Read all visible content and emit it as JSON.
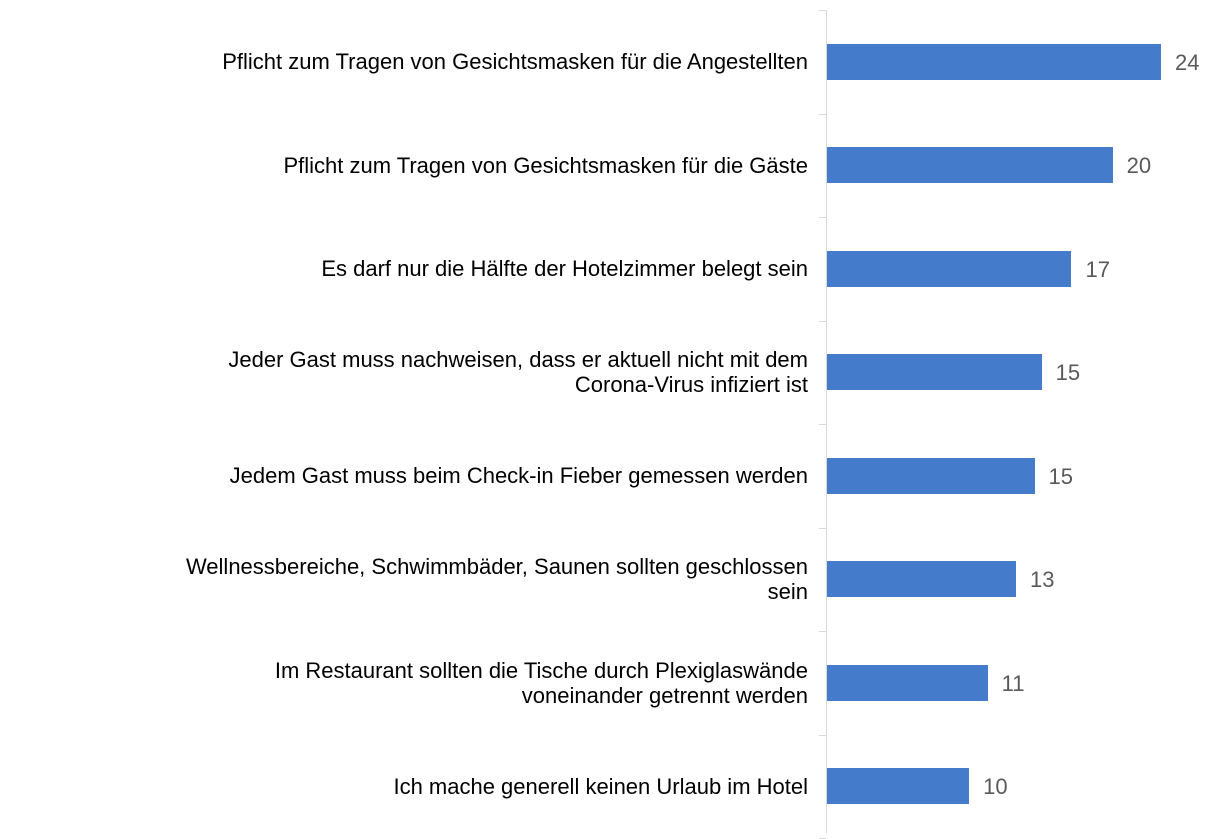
{
  "chart_data": {
    "type": "barh",
    "categories": [
      "Pflicht zum Tragen von Gesichtsmasken für die Angestellten",
      "Pflicht zum Tragen von Gesichtsmasken für die Gäste",
      "Es darf nur die Hälfte der Hotelzimmer belegt sein",
      "Jeder Gast muss nachweisen, dass er aktuell nicht mit dem\nCorona-Virus infiziert ist",
      "Jedem Gast muss beim Check-in Fieber gemessen werden",
      "Wellnessbereiche, Schwimmbäder, Saunen sollten geschlossen\nsein",
      "Im Restaurant sollten die Tische durch Plexiglaswände\nvoneinander getrennt werden",
      "Ich mache generell keinen Urlaub im Hotel"
    ],
    "values": [
      23.5,
      20.1,
      17.2,
      15.1,
      14.6,
      13.3,
      11.3,
      10.0
    ],
    "value_labels": [
      "24",
      "20",
      "17",
      "15",
      "15",
      "13",
      "11",
      "10"
    ],
    "color": "#447ccb"
  }
}
